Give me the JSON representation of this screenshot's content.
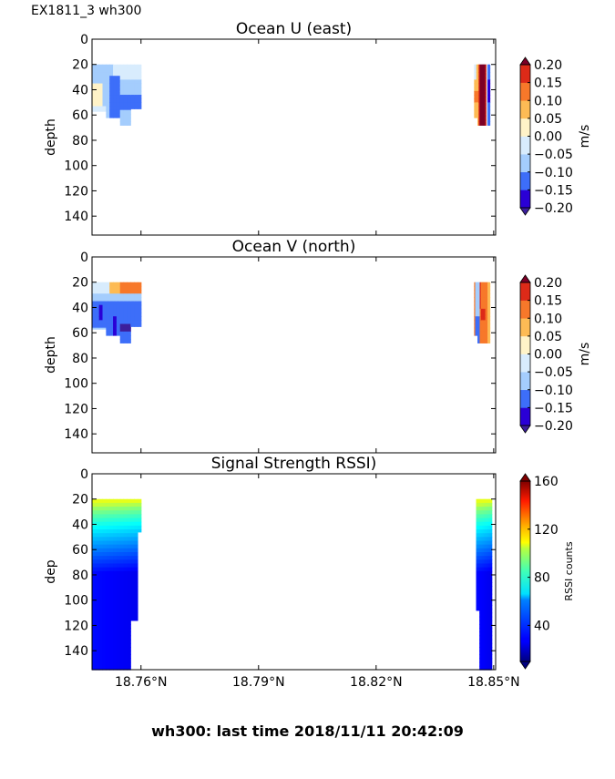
{
  "figure": {
    "suptitle": "EX1811_3 wh300",
    "footer": "wh300: last time 2018/11/11 20:42:09"
  },
  "chart_data": [
    {
      "type": "heatmap",
      "title": "Ocean U (east)",
      "ylabel": "depth",
      "xlabel": "",
      "y_inverted": true,
      "ylim": [
        155,
        0
      ],
      "yticks": [
        0,
        20,
        40,
        60,
        80,
        100,
        120,
        140
      ],
      "xticks": [
        "18.76°N",
        "18.79°N",
        "18.82°N",
        "18.85°N"
      ],
      "xtick_values": [
        18.76,
        18.79,
        18.82,
        18.85
      ],
      "xlim": [
        18.7475,
        18.8505
      ],
      "show_xticklabels": false,
      "colorbar": {
        "label": "m/s",
        "levels": [
          -0.2,
          -0.15,
          -0.1,
          -0.05,
          0.0,
          0.05,
          0.1,
          0.15,
          0.2
        ],
        "ticklabels": [
          "0.20",
          "0.15",
          "0.10",
          "0.05",
          "0.00",
          "−0.05",
          "−0.10",
          "−0.15",
          "−0.20"
        ],
        "colors": [
          "#2a00d6",
          "#3d6ef9",
          "#a4cdfd",
          "#d8ecfd",
          "#fff3c8",
          "#fdbb55",
          "#f7782a",
          "#dd2a18"
        ],
        "under_color": "#3c1e9c",
        "over_color": "#7c0026",
        "extend": "both"
      },
      "segments": [
        {
          "x_range": [
            18.7475,
            18.76
          ],
          "depth_range": [
            20,
            68
          ],
          "pattern": "mostly light blue (-0.10..-0.05) with blue core (-0.15..-0.10) at 30-60 m, small near-zero patch at 35-50 m on west edge"
        },
        {
          "x_range": [
            18.845,
            18.849
          ],
          "depth_range": [
            20,
            68
          ],
          "pattern": "strong eastward core >0.20 m/s with red/orange flanks, negative values on east edge"
        }
      ]
    },
    {
      "type": "heatmap",
      "title": "Ocean V (north)",
      "ylabel": "depth",
      "xlabel": "",
      "y_inverted": true,
      "ylim": [
        155,
        0
      ],
      "yticks": [
        0,
        20,
        40,
        60,
        80,
        100,
        120,
        140
      ],
      "xticks": [
        "18.76°N",
        "18.79°N",
        "18.82°N",
        "18.85°N"
      ],
      "xtick_values": [
        18.76,
        18.79,
        18.82,
        18.85
      ],
      "xlim": [
        18.7475,
        18.8505
      ],
      "show_xticklabels": false,
      "colorbar": {
        "label": "m/s",
        "levels": [
          -0.2,
          -0.15,
          -0.1,
          -0.05,
          0.0,
          0.05,
          0.1,
          0.15,
          0.2
        ],
        "ticklabels": [
          "0.20",
          "0.15",
          "0.10",
          "0.05",
          "0.00",
          "−0.05",
          "−0.10",
          "−0.15",
          "−0.20"
        ],
        "colors": [
          "#2a00d6",
          "#3d6ef9",
          "#a4cdfd",
          "#d8ecfd",
          "#fff3c8",
          "#fdbb55",
          "#f7782a",
          "#dd2a18"
        ],
        "under_color": "#3c1e9c",
        "over_color": "#7c0026",
        "extend": "both"
      },
      "segments": [
        {
          "x_range": [
            18.7475,
            18.76
          ],
          "depth_range": [
            20,
            68
          ],
          "pattern": "orange northward band near 20-30 m, southward blue values -0.10..-0.20 below 35 m"
        },
        {
          "x_range": [
            18.845,
            18.849
          ],
          "depth_range": [
            20,
            68
          ],
          "pattern": "orange/red northward flow 0.05..0.15 m/s, narrow southward blue strip on west side"
        }
      ]
    },
    {
      "type": "heatmap",
      "title": "Signal Strength RSSI)",
      "ylabel": "dep",
      "xlabel": "",
      "y_inverted": true,
      "ylim": [
        155,
        0
      ],
      "yticks": [
        0,
        20,
        40,
        60,
        80,
        100,
        120,
        140
      ],
      "xticks": [
        "18.76°N",
        "18.79°N",
        "18.82°N",
        "18.85°N"
      ],
      "xtick_values": [
        18.76,
        18.79,
        18.82,
        18.85
      ],
      "xlim": [
        18.7475,
        18.8505
      ],
      "show_xticklabels": true,
      "colorbar": {
        "label": "RSSI counts",
        "range": [
          10,
          160
        ],
        "ticks": [
          40,
          80,
          120,
          160
        ],
        "ticklabels": [
          "40",
          "80",
          "120",
          "160"
        ],
        "colormap": "jet",
        "extend": "both"
      },
      "segments": [
        {
          "x_range": [
            18.7475,
            18.76
          ],
          "depth_range": [
            20,
            155
          ],
          "top_value": 100,
          "bottom_value": 30,
          "pattern": "RSSI ~100 at 20 m decaying to ~30 below 60 m"
        },
        {
          "x_range": [
            18.8455,
            18.8495
          ],
          "depth_range": [
            20,
            155
          ],
          "top_value": 100,
          "bottom_value": 30,
          "pattern": "RSSI ~100 at 20 m decaying to ~30 below 60 m"
        }
      ]
    }
  ]
}
